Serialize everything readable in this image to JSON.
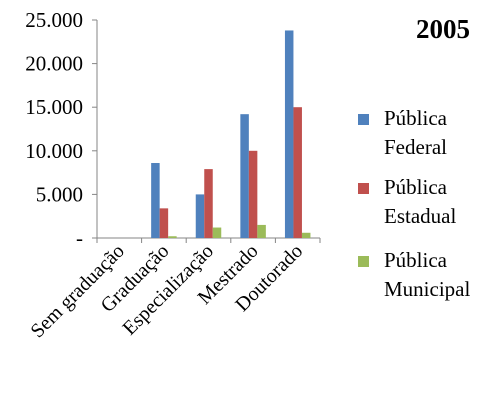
{
  "chart_data": {
    "type": "bar",
    "title": "2005",
    "categories": [
      "Sem graduação",
      "Graduação",
      "Especialização",
      "Mestrado",
      "Doutorado"
    ],
    "series": [
      {
        "name": "Pública Federal",
        "name_lines": [
          "Pública",
          "Federal"
        ],
        "color": "#4F81BD",
        "values": [
          0,
          8600,
          5000,
          14200,
          23800
        ]
      },
      {
        "name": "Pública Estadual",
        "name_lines": [
          "Pública",
          "Estadual"
        ],
        "color": "#C0504D",
        "values": [
          0,
          3400,
          7900,
          10000,
          15000
        ]
      },
      {
        "name": "Pública Municipal",
        "name_lines": [
          "Pública",
          "Municipal"
        ],
        "color": "#9BBB59",
        "values": [
          0,
          200,
          1200,
          1500,
          600
        ]
      }
    ],
    "ylim": [
      0,
      25000
    ],
    "yticks": [
      0,
      5000,
      10000,
      15000,
      20000,
      25000
    ],
    "ytick_labels": [
      "-",
      "5.000",
      "10.000",
      "15.000",
      "20.000",
      "25.000"
    ],
    "xlabel": "",
    "ylabel": "",
    "grid": false,
    "legend_position": "right"
  }
}
